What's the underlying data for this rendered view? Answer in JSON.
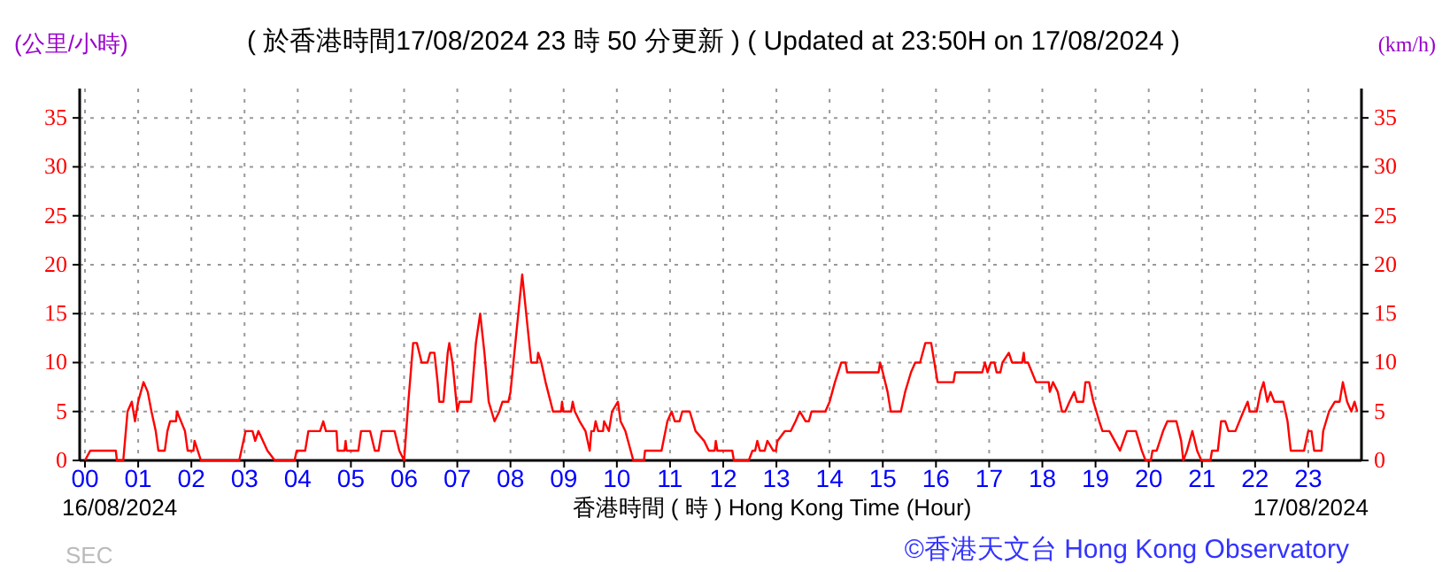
{
  "chart_data": {
    "type": "line",
    "title": "( 於香港時間17/08/2024 23 時 50 分更新 ) ( Updated at 23:50H on 17/08/2024 )",
    "ylabel": "(公里/小時)",
    "y2label": "(km/h)",
    "xlabel": "香港時間 ( 時 ) Hong Kong Time (Hour)",
    "annotations": [
      "16/08/2024",
      "17/08/2024",
      "SEC",
      "©香港天文台 Hong Kong Observatory"
    ],
    "xlim": [
      -0.1,
      24
    ],
    "xticks": [
      {
        "value": 0,
        "label": "00"
      },
      {
        "value": 1,
        "label": "01"
      },
      {
        "value": 2,
        "label": "02"
      },
      {
        "value": 3,
        "label": "03"
      },
      {
        "value": 4,
        "label": "04"
      },
      {
        "value": 5,
        "label": "05"
      },
      {
        "value": 6,
        "label": "06"
      },
      {
        "value": 7,
        "label": "07"
      },
      {
        "value": 8,
        "label": "08"
      },
      {
        "value": 9,
        "label": "09"
      },
      {
        "value": 10,
        "label": "10"
      },
      {
        "value": 11,
        "label": "11"
      },
      {
        "value": 12,
        "label": "12"
      },
      {
        "value": 13,
        "label": "13"
      },
      {
        "value": 14,
        "label": "14"
      },
      {
        "value": 15,
        "label": "15"
      },
      {
        "value": 16,
        "label": "16"
      },
      {
        "value": 17,
        "label": "17"
      },
      {
        "value": 18,
        "label": "18"
      },
      {
        "value": 19,
        "label": "19"
      },
      {
        "value": 20,
        "label": "20"
      },
      {
        "value": 21,
        "label": "21"
      },
      {
        "value": 22,
        "label": "22"
      },
      {
        "value": 23,
        "label": "23"
      }
    ],
    "ylim": [
      0,
      38
    ],
    "yticks": [
      0,
      5,
      10,
      15,
      20,
      25,
      30,
      35
    ],
    "y2lim": [
      0,
      38
    ],
    "y2ticks": [
      0,
      5,
      10,
      15,
      20,
      25,
      30,
      35
    ],
    "grid": true,
    "marker": "none",
    "line_style": "solid",
    "series": [
      {
        "color": "#ff0000",
        "x": [
          0,
          0.1,
          0.58,
          0.6,
          0.72,
          0.8,
          0.88,
          0.94,
          1.0,
          1.1,
          1.18,
          1.25,
          1.33,
          1.38,
          1.5,
          1.55,
          1.6,
          1.71,
          1.73,
          1.88,
          1.93,
          2.04,
          2.06,
          2.18,
          2.9,
          3.02,
          3.15,
          3.2,
          3.26,
          3.43,
          3.57,
          3.94,
          3.98,
          4.14,
          4.2,
          4.42,
          4.48,
          4.53,
          4.73,
          4.75,
          4.88,
          4.9,
          4.92,
          5.14,
          5.19,
          5.36,
          5.45,
          5.52,
          5.58,
          5.82,
          5.91,
          6.0,
          6.08,
          6.17,
          6.24,
          6.33,
          6.44,
          6.49,
          6.57,
          6.63,
          6.66,
          6.74,
          6.82,
          6.85,
          6.91,
          7.0,
          7.04,
          7.26,
          7.35,
          7.43,
          7.51,
          7.59,
          7.7,
          7.79,
          7.85,
          7.96,
          8.0,
          8.22,
          8.39,
          8.5,
          8.52,
          8.58,
          8.66,
          8.8,
          8.95,
          8.97,
          8.99,
          9.14,
          9.17,
          9.21,
          9.3,
          9.41,
          9.49,
          9.52,
          9.57,
          9.6,
          9.65,
          9.74,
          9.76,
          9.85,
          9.91,
          10.02,
          10.07,
          10.16,
          10.26,
          10.31,
          10.51,
          10.53,
          10.84,
          10.95,
          11.03,
          11.09,
          11.18,
          11.23,
          11.37,
          11.48,
          11.64,
          11.73,
          11.84,
          11.86,
          11.89,
          12.17,
          12.2,
          12.48,
          12.55,
          12.6,
          12.64,
          12.69,
          12.78,
          12.83,
          12.94,
          12.99,
          13.02,
          13.16,
          13.27,
          13.36,
          13.44,
          13.55,
          13.61,
          13.66,
          13.92,
          14.0,
          14.1,
          14.22,
          14.3,
          14.33,
          14.92,
          14.95,
          15.0,
          15.09,
          15.15,
          15.34,
          15.42,
          15.53,
          15.61,
          15.7,
          15.8,
          15.86,
          15.91,
          15.97,
          16.03,
          16.33,
          16.36,
          16.87,
          16.92,
          16.97,
          17.03,
          17.1,
          17.14,
          17.21,
          17.25,
          17.37,
          17.43,
          17.62,
          17.65,
          17.67,
          17.73,
          17.88,
          18.12,
          18.14,
          18.2,
          18.29,
          18.37,
          18.43,
          18.51,
          18.6,
          18.65,
          18.77,
          18.81,
          18.88,
          18.96,
          19.07,
          19.13,
          19.26,
          19.46,
          19.59,
          19.76,
          19.87,
          19.94,
          20.04,
          20.07,
          20.15,
          20.27,
          20.35,
          20.52,
          20.61,
          20.65,
          20.72,
          20.82,
          20.91,
          20.99,
          21.16,
          21.19,
          21.3,
          21.36,
          21.44,
          21.5,
          21.63,
          21.78,
          21.86,
          21.9,
          22.03,
          22.1,
          22.16,
          22.23,
          22.29,
          22.36,
          22.53,
          22.61,
          22.67,
          22.92,
          23.0,
          23.06,
          23.11,
          23.25,
          23.28,
          23.39,
          23.5,
          23.59,
          23.65,
          23.73,
          23.81,
          23.87,
          23.92
        ],
        "values": [
          0,
          1,
          1,
          0,
          0,
          5,
          6,
          4,
          6,
          8,
          7,
          5,
          3,
          1,
          1,
          3,
          4,
          4,
          5,
          3,
          1,
          1,
          2,
          0,
          0,
          3,
          3,
          2,
          3,
          1,
          0,
          0,
          1,
          1,
          3,
          3,
          4,
          3,
          3,
          1,
          1,
          2,
          1,
          1,
          3,
          3,
          1,
          1,
          3,
          3,
          1,
          0,
          6,
          12,
          12,
          10,
          10,
          11,
          11,
          8,
          6,
          6,
          11,
          12,
          10,
          5,
          6,
          6,
          12,
          15,
          11,
          6,
          4,
          5,
          6,
          6,
          7,
          19,
          10,
          10,
          11,
          10,
          8,
          5,
          5,
          6,
          5,
          5,
          6,
          5,
          4,
          3,
          1,
          3,
          3,
          4,
          3,
          3,
          4,
          3,
          5,
          6,
          4,
          3,
          1,
          0,
          0,
          1,
          1,
          4,
          5,
          4,
          4,
          5,
          5,
          3,
          2,
          1,
          1,
          2,
          1,
          1,
          0,
          0,
          1,
          1,
          2,
          1,
          1,
          2,
          1,
          1,
          2,
          3,
          3,
          4,
          5,
          4,
          4,
          5,
          5,
          6,
          8,
          10,
          10,
          9,
          9,
          10,
          9,
          7,
          5,
          5,
          7,
          9,
          10,
          10,
          12,
          12,
          12,
          10,
          8,
          8,
          9,
          9,
          10,
          9,
          10,
          10,
          9,
          9,
          10,
          11,
          10,
          10,
          11,
          10,
          10,
          8,
          8,
          7,
          8,
          7,
          5,
          5,
          6,
          7,
          6,
          6,
          8,
          8,
          6,
          4,
          3,
          3,
          1,
          3,
          3,
          1,
          0,
          0,
          1,
          1,
          3,
          4,
          4,
          2,
          0,
          1,
          3,
          1,
          0,
          0,
          1,
          1,
          4,
          4,
          3,
          3,
          5,
          6,
          5,
          5,
          7,
          8,
          6,
          7,
          6,
          6,
          4,
          1,
          1,
          3,
          3,
          1,
          1,
          3,
          5,
          6,
          6,
          8,
          6,
          5,
          6,
          5
        ]
      }
    ]
  }
}
